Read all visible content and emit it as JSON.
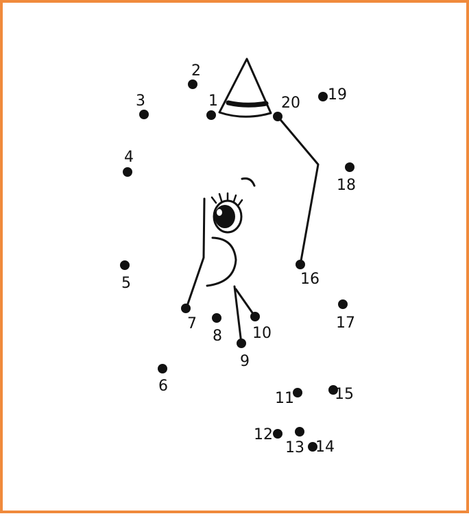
{
  "puzzle": {
    "border_color": "#f08a3c",
    "ink_color": "#111111",
    "dots": [
      {
        "n": "1"
      },
      {
        "n": "2"
      },
      {
        "n": "3"
      },
      {
        "n": "4"
      },
      {
        "n": "5"
      },
      {
        "n": "6"
      },
      {
        "n": "7"
      },
      {
        "n": "8"
      },
      {
        "n": "9"
      },
      {
        "n": "10"
      },
      {
        "n": "11"
      },
      {
        "n": "12"
      },
      {
        "n": "13"
      },
      {
        "n": "14"
      },
      {
        "n": "15"
      },
      {
        "n": "16"
      },
      {
        "n": "17"
      },
      {
        "n": "18"
      },
      {
        "n": "19"
      },
      {
        "n": "20"
      }
    ]
  }
}
